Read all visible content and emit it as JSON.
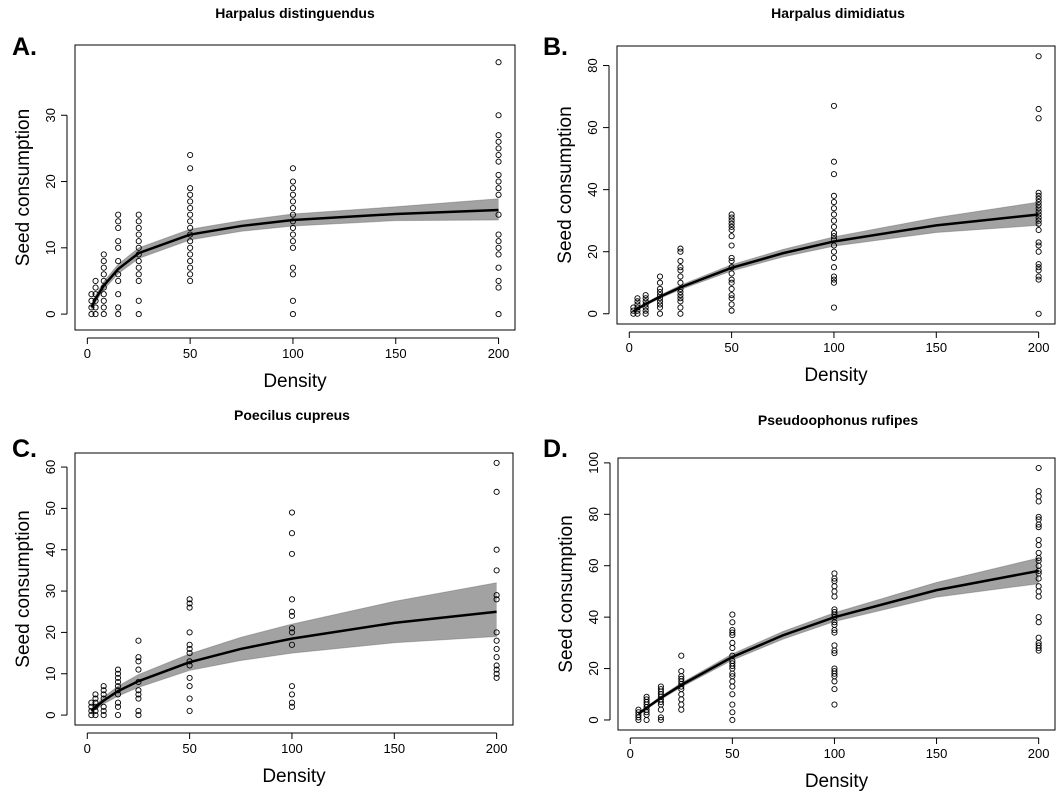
{
  "chart_data": [
    {
      "type": "scatter",
      "panel_label": "A.",
      "title": "Harpalus distinguendus",
      "xlabel": "Density",
      "ylabel": "Seed consumption",
      "xlim": [
        -6,
        208
      ],
      "ylim": [
        -2.4,
        40.6
      ],
      "xticks": [
        0,
        50,
        100,
        150,
        200
      ],
      "yticks": [
        0,
        10,
        20,
        30
      ],
      "color": "#000000",
      "band_color": "#555555",
      "x": [
        2,
        4,
        8,
        15,
        25,
        50,
        100,
        200
      ],
      "values": [
        [
          0,
          1,
          2,
          3
        ],
        [
          0,
          1,
          2,
          3,
          4,
          5
        ],
        [
          0,
          1,
          2,
          3,
          4,
          5,
          6,
          7,
          8,
          9
        ],
        [
          0,
          1,
          3,
          5,
          6,
          8,
          10,
          11,
          13,
          14,
          15
        ],
        [
          0,
          2,
          5,
          6,
          7,
          8,
          9,
          10,
          11,
          12,
          13,
          14,
          15
        ],
        [
          5,
          6,
          7,
          8,
          9,
          10,
          11,
          12,
          13,
          14,
          15,
          16,
          17,
          18,
          19,
          22,
          24
        ],
        [
          0,
          2,
          6,
          7,
          10,
          11,
          12,
          13,
          14,
          15,
          16,
          17,
          18,
          19,
          20,
          22
        ],
        [
          0,
          4,
          5,
          7,
          9,
          10,
          11,
          12,
          15,
          18,
          19,
          20,
          21,
          23,
          24,
          25,
          26,
          27,
          30,
          38
        ]
      ],
      "fit": {
        "x": [
          2,
          4,
          8,
          15,
          25,
          50,
          75,
          100,
          150,
          200
        ],
        "values": [
          1,
          2.3,
          4.3,
          6.8,
          9.2,
          12,
          13.3,
          14.2,
          15.1,
          15.7
        ],
        "lower": [
          0.7,
          1.8,
          3.7,
          6.1,
          8.4,
          11.2,
          12.5,
          13.3,
          14.1,
          14.2
        ],
        "upper": [
          1.3,
          2.8,
          4.9,
          7.5,
          10,
          12.8,
          14.1,
          15.1,
          16.2,
          17.4
        ]
      }
    },
    {
      "type": "scatter",
      "panel_label": "B.",
      "title": "Harpalus dimidiatus",
      "xlabel": "Density",
      "ylabel": "Seed consumption",
      "xlim": [
        -6,
        208
      ],
      "ylim": [
        -3.3,
        86.3
      ],
      "xticks": [
        0,
        50,
        100,
        150,
        200
      ],
      "yticks": [
        0,
        20,
        40,
        60,
        80
      ],
      "color": "#000000",
      "band_color": "#555555",
      "x": [
        2,
        4,
        8,
        15,
        25,
        50,
        100,
        200
      ],
      "values": [
        [
          0,
          1,
          2
        ],
        [
          0,
          1,
          2,
          3,
          4,
          5
        ],
        [
          0,
          1,
          2,
          3,
          4,
          5,
          6
        ],
        [
          0,
          2,
          3,
          4,
          5,
          6,
          7,
          8,
          10,
          12
        ],
        [
          0,
          2,
          4,
          5,
          6,
          7,
          8,
          10,
          12,
          14,
          15,
          17,
          20,
          21
        ],
        [
          1,
          3,
          5,
          6,
          8,
          10,
          11,
          13,
          15,
          17,
          18,
          22,
          25,
          27,
          28,
          29,
          30,
          31,
          32
        ],
        [
          2,
          10,
          11,
          12,
          15,
          18,
          20,
          22,
          24,
          25,
          26,
          28,
          30,
          32,
          34,
          36,
          38,
          45,
          49,
          67
        ],
        [
          0,
          11,
          12,
          14,
          15,
          16,
          20,
          22,
          23,
          27,
          29,
          30,
          31,
          32,
          33,
          34,
          35,
          36,
          37,
          38,
          39,
          63,
          66,
          83
        ]
      ],
      "fit": {
        "x": [
          2,
          4,
          8,
          15,
          25,
          50,
          75,
          100,
          150,
          200
        ],
        "values": [
          0.8,
          1.6,
          3.1,
          5.5,
          8.5,
          14.8,
          19.5,
          23.3,
          28.5,
          32
        ],
        "lower": [
          0.6,
          1.3,
          2.7,
          5,
          7.8,
          13.8,
          18.3,
          21.8,
          26.2,
          28.5
        ],
        "upper": [
          1,
          1.9,
          3.5,
          6,
          9.2,
          15.8,
          20.7,
          24.8,
          31,
          36
        ]
      }
    },
    {
      "type": "scatter",
      "panel_label": "C.",
      "title": "Poecilus cupreus",
      "xlabel": "Density",
      "ylabel": "Seed consumption",
      "xlim": [
        -6,
        208
      ],
      "ylim": [
        -2.4,
        63.4
      ],
      "xticks": [
        0,
        50,
        100,
        150,
        200
      ],
      "yticks": [
        0,
        10,
        20,
        30,
        40,
        50,
        60
      ],
      "color": "#000000",
      "band_color": "#555555",
      "x": [
        2,
        4,
        8,
        15,
        25,
        50,
        100,
        200
      ],
      "values": [
        [
          0,
          1,
          2,
          3
        ],
        [
          0,
          1,
          2,
          3,
          4,
          5
        ],
        [
          0,
          1,
          2,
          4,
          5,
          6,
          7
        ],
        [
          0,
          2,
          3,
          5,
          6,
          7,
          8,
          9,
          10,
          11
        ],
        [
          0,
          1,
          4,
          5,
          6,
          8,
          11,
          13,
          14,
          18
        ],
        [
          1,
          4,
          7,
          9,
          12,
          13,
          15,
          16,
          17,
          20,
          26,
          27,
          28
        ],
        [
          2,
          3,
          5,
          7,
          17,
          20,
          21,
          24,
          25,
          28,
          39,
          44,
          49
        ],
        [
          9,
          10,
          11,
          12,
          14,
          16,
          18,
          20,
          28,
          29,
          35,
          40,
          54,
          61
        ]
      ],
      "fit": {
        "x": [
          2,
          4,
          8,
          15,
          25,
          50,
          75,
          100,
          150,
          200
        ],
        "values": [
          1,
          1.9,
          3.5,
          5.8,
          8.2,
          12.8,
          16,
          18.5,
          22.3,
          25
        ],
        "lower": [
          0.7,
          1.4,
          2.7,
          4.6,
          6.7,
          10.8,
          13.2,
          15,
          17.5,
          19
        ],
        "upper": [
          1.3,
          2.4,
          4.3,
          7,
          9.8,
          14.8,
          18.8,
          22,
          27.5,
          32
        ]
      }
    },
    {
      "type": "scatter",
      "panel_label": "D.",
      "title": "Pseudoophonus rufipes",
      "xlabel": "Density",
      "ylabel": "Seed consumption",
      "xlim": [
        -6,
        208
      ],
      "ylim": [
        -3.9,
        101.9
      ],
      "xticks": [
        0,
        50,
        100,
        150,
        200
      ],
      "yticks": [
        0,
        20,
        40,
        60,
        80,
        100
      ],
      "color": "#000000",
      "band_color": "#555555",
      "x": [
        4,
        8,
        15,
        25,
        50,
        100,
        200
      ],
      "values": [
        [
          0,
          1,
          2,
          3,
          4
        ],
        [
          0,
          2,
          3,
          4,
          5,
          6,
          7,
          8,
          9
        ],
        [
          0,
          1,
          4,
          6,
          7,
          8,
          9,
          10,
          11,
          12,
          13
        ],
        [
          4,
          6,
          8,
          10,
          12,
          13,
          14,
          15,
          16,
          17,
          19,
          25
        ],
        [
          0,
          3,
          6,
          10,
          13,
          15,
          17,
          18,
          20,
          21,
          22,
          23,
          25,
          28,
          30,
          33,
          34,
          35,
          38,
          41
        ],
        [
          6,
          12,
          15,
          17,
          18,
          19,
          20,
          26,
          27,
          29,
          34,
          35,
          37,
          38,
          40,
          41,
          42,
          43,
          48,
          50,
          52,
          54,
          55,
          57
        ],
        [
          27,
          28,
          29,
          30,
          32,
          38,
          40,
          48,
          50,
          52,
          55,
          57,
          58,
          60,
          62,
          63,
          65,
          68,
          70,
          75,
          76,
          78,
          79,
          85,
          87,
          89,
          98
        ]
      ],
      "fit": {
        "x": [
          4,
          8,
          15,
          25,
          50,
          75,
          100,
          150,
          200
        ],
        "values": [
          2.4,
          4.7,
          8.6,
          13.6,
          24.5,
          33,
          40,
          50.5,
          58
        ],
        "lower": [
          2.1,
          4.2,
          8,
          12.8,
          23.3,
          31.5,
          38.3,
          47.8,
          53
        ],
        "upper": [
          2.7,
          5.2,
          9.2,
          14.4,
          25.7,
          34.5,
          41.7,
          53.5,
          63
        ]
      }
    }
  ]
}
